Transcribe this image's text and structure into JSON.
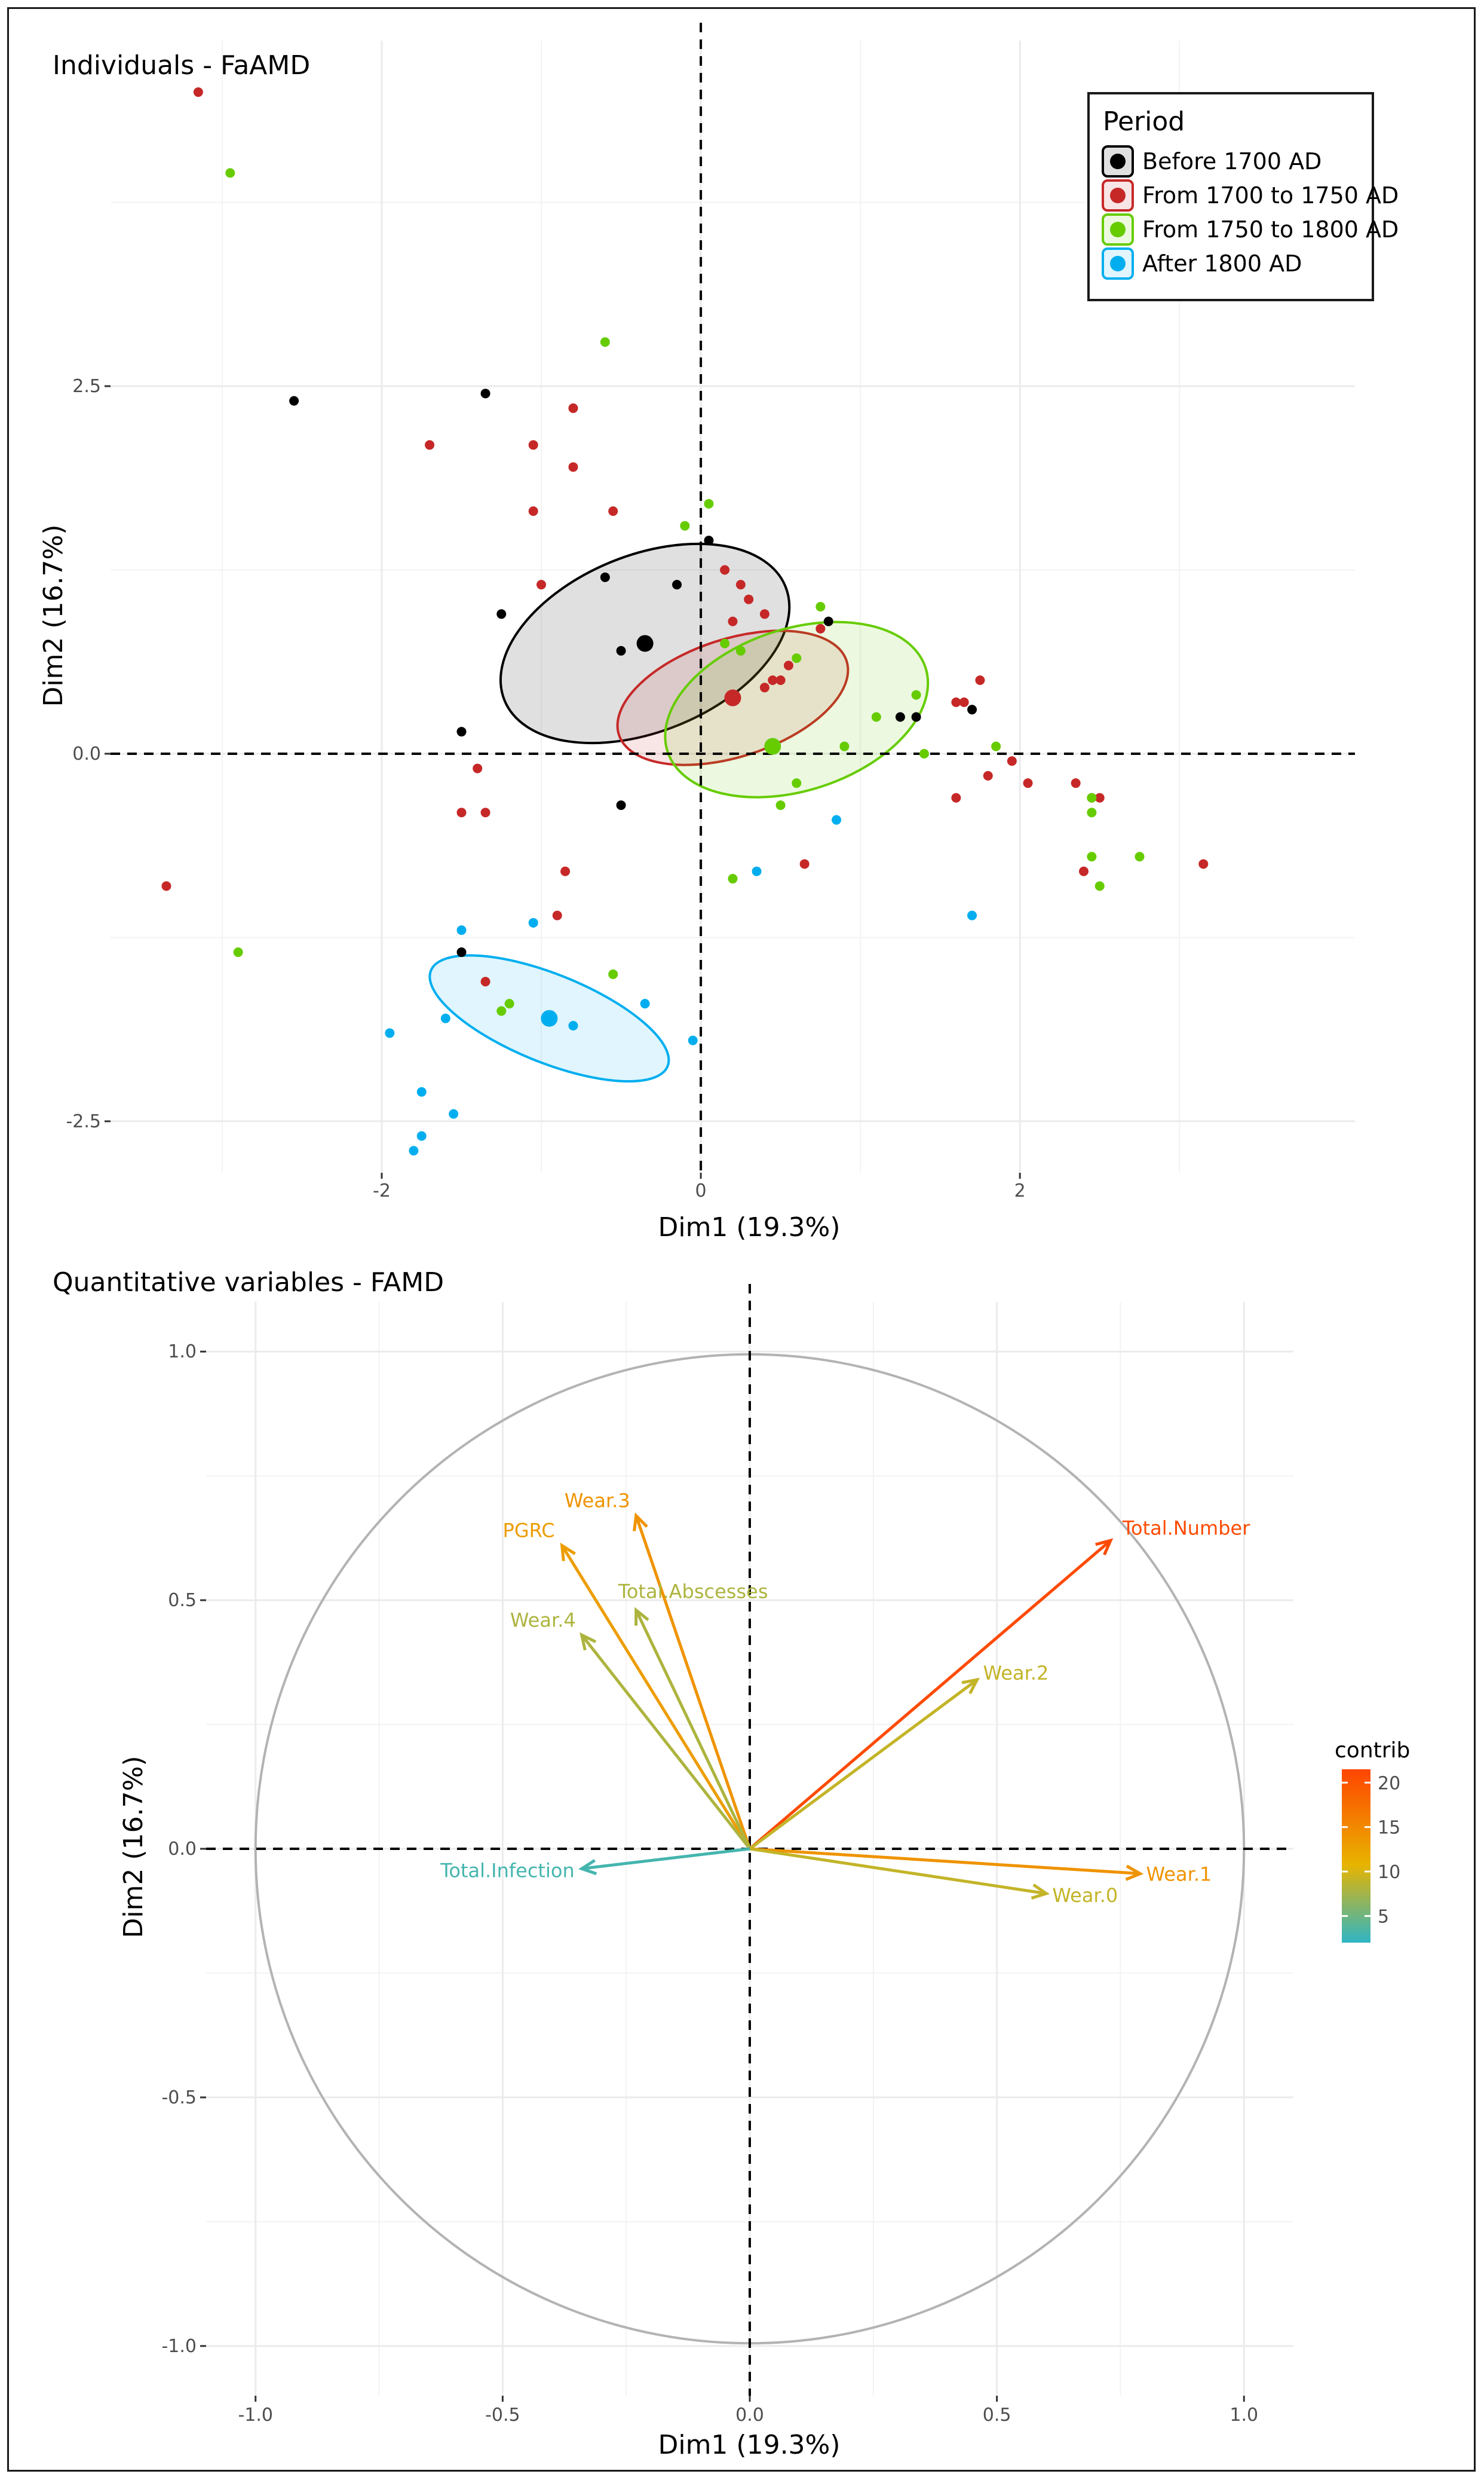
{
  "colors": {
    "period": {
      "Before 1700 AD": "#000000",
      "From 1700 to 1750 AD": "#C62828",
      "From 1750 to 1800 AD": "#66CC00",
      "After 1800 AD": "#00AEEF"
    },
    "contrib_low": "#2FB5C4",
    "contrib_mid": "#E8B400",
    "contrib_high": "#FF4500",
    "grid": "#EBEBEB",
    "axis_text": "#4D4D4D",
    "circle": "#B3B3B3"
  },
  "chart_data": [
    {
      "type": "scatter",
      "title": "Individuals - FaAMD",
      "xlabel": "Dim1 (19.3%)",
      "ylabel": "Dim2 (16.7%)",
      "xlim": [
        -3.7,
        4.1
      ],
      "ylim": [
        -2.85,
        4.85
      ],
      "x_ticks": [
        -2,
        0,
        2
      ],
      "x_tick_labels": [
        "-2",
        "0",
        "2"
      ],
      "y_ticks": [
        -2.5,
        0,
        2.5
      ],
      "y_tick_labels": [
        "-2.5",
        "0.0",
        "2.5"
      ],
      "grid": true,
      "legend": {
        "title": "Period",
        "position": "top-right",
        "entries": [
          "Before 1700 AD",
          "From 1700 to 1750 AD",
          "From 1750 to 1800 AD",
          "After 1800 AD"
        ]
      },
      "series": [
        {
          "name": "Before 1700 AD",
          "points": [
            [
              -2.55,
              2.4
            ],
            [
              -1.35,
              2.45
            ],
            [
              -1.25,
              0.95
            ],
            [
              -0.6,
              1.2
            ],
            [
              -0.5,
              0.7
            ],
            [
              -0.15,
              1.15
            ],
            [
              0.05,
              1.45
            ],
            [
              0.8,
              0.9
            ],
            [
              -1.5,
              0.15
            ],
            [
              -0.5,
              -0.35
            ],
            [
              -1.5,
              -1.35
            ],
            [
              1.25,
              0.25
            ],
            [
              1.35,
              0.25
            ],
            [
              1.7,
              0.3
            ]
          ],
          "centroid": [
            -0.35,
            0.75
          ],
          "ellipse": {
            "cx": -0.35,
            "cy": 0.75,
            "rx": 0.95,
            "ry": 0.6,
            "angle_deg": -22
          }
        },
        {
          "name": "From 1700 to 1750 AD",
          "points": [
            [
              -3.15,
              4.5
            ],
            [
              -1.7,
              2.1
            ],
            [
              -1.05,
              2.1
            ],
            [
              -0.8,
              2.35
            ],
            [
              -0.8,
              1.95
            ],
            [
              -1.05,
              1.65
            ],
            [
              -0.55,
              1.65
            ],
            [
              -1.0,
              1.15
            ],
            [
              0.15,
              1.25
            ],
            [
              0.25,
              1.15
            ],
            [
              0.3,
              1.05
            ],
            [
              0.4,
              0.95
            ],
            [
              0.2,
              0.9
            ],
            [
              0.5,
              0.5
            ],
            [
              0.55,
              0.6
            ],
            [
              0.45,
              0.5
            ],
            [
              0.75,
              0.85
            ],
            [
              0.4,
              0.45
            ],
            [
              -1.5,
              -0.4
            ],
            [
              -1.35,
              -0.4
            ],
            [
              -1.4,
              -0.1
            ],
            [
              -0.85,
              -0.8
            ],
            [
              -0.9,
              -1.1
            ],
            [
              -1.35,
              -1.55
            ],
            [
              0.65,
              -0.75
            ],
            [
              -3.35,
              -0.9
            ],
            [
              1.6,
              0.35
            ],
            [
              1.65,
              0.35
            ],
            [
              1.6,
              -0.3
            ],
            [
              1.75,
              0.5
            ],
            [
              1.8,
              -0.15
            ],
            [
              1.95,
              -0.05
            ],
            [
              2.05,
              -0.2
            ],
            [
              2.35,
              -0.2
            ],
            [
              2.45,
              -0.3
            ],
            [
              2.4,
              -0.8
            ],
            [
              2.5,
              -0.3
            ],
            [
              3.15,
              -0.75
            ]
          ],
          "centroid": [
            0.2,
            0.38
          ],
          "ellipse": {
            "cx": 0.2,
            "cy": 0.38,
            "rx": 0.75,
            "ry": 0.4,
            "angle_deg": -18
          }
        },
        {
          "name": "From 1750 to 1800 AD",
          "points": [
            [
              -2.95,
              3.95
            ],
            [
              -2.9,
              -1.35
            ],
            [
              -0.6,
              2.8
            ],
            [
              -0.1,
              1.55
            ],
            [
              0.05,
              1.7
            ],
            [
              0.15,
              0.75
            ],
            [
              0.25,
              0.7
            ],
            [
              0.6,
              0.65
            ],
            [
              0.75,
              1.0
            ],
            [
              0.5,
              -0.35
            ],
            [
              0.6,
              -0.2
            ],
            [
              0.9,
              0.05
            ],
            [
              1.1,
              0.25
            ],
            [
              1.35,
              0.4
            ],
            [
              1.4,
              0.0
            ],
            [
              1.85,
              0.05
            ],
            [
              2.45,
              -0.3
            ],
            [
              2.45,
              -0.4
            ],
            [
              2.45,
              -0.7
            ],
            [
              2.5,
              -0.9
            ],
            [
              2.75,
              -0.7
            ],
            [
              0.2,
              -0.85
            ],
            [
              -0.55,
              -1.5
            ],
            [
              -1.2,
              -1.7
            ],
            [
              -1.25,
              -1.75
            ]
          ],
          "centroid": [
            0.45,
            0.05
          ],
          "ellipse": {
            "cx": 0.6,
            "cy": 0.3,
            "rx": 0.85,
            "ry": 0.55,
            "angle_deg": -18
          }
        },
        {
          "name": "After 1800 AD",
          "points": [
            [
              -1.5,
              -1.2
            ],
            [
              -1.05,
              -1.15
            ],
            [
              -0.35,
              -1.7
            ],
            [
              -0.8,
              -1.85
            ],
            [
              -1.6,
              -1.8
            ],
            [
              -1.95,
              -1.9
            ],
            [
              -1.75,
              -2.3
            ],
            [
              -1.55,
              -2.45
            ],
            [
              -1.75,
              -2.6
            ],
            [
              -1.8,
              -2.7
            ],
            [
              -0.05,
              -1.95
            ],
            [
              0.35,
              -0.8
            ],
            [
              0.85,
              -0.45
            ],
            [
              1.7,
              -1.1
            ]
          ],
          "centroid": [
            -0.95,
            -1.8
          ],
          "ellipse": {
            "cx": -0.95,
            "cy": -1.8,
            "rx": 0.8,
            "ry": 0.3,
            "angle_deg": 22
          }
        }
      ]
    },
    {
      "type": "scatter",
      "title": "Quantitative variables - FAMD",
      "xlabel": "Dim1 (19.3%)",
      "ylabel": "Dim2 (16.7%)",
      "xlim": [
        -1.1,
        1.1
      ],
      "ylim": [
        -1.1,
        1.1
      ],
      "x_ticks": [
        -1.0,
        -0.5,
        0.0,
        0.5,
        1.0
      ],
      "x_tick_labels": [
        "-1.0",
        "-0.5",
        "0.0",
        "0.5",
        "1.0"
      ],
      "y_ticks": [
        -1.0,
        -0.5,
        0.0,
        0.5,
        1.0
      ],
      "y_tick_labels": [
        "-1.0",
        "-0.5",
        "0.0",
        "0.5",
        "1.0"
      ],
      "grid": true,
      "legend": {
        "title": "contrib",
        "position": "right",
        "range": [
          2,
          21.5
        ],
        "ticks": [
          5,
          10,
          15,
          20
        ],
        "tick_labels": [
          "5",
          "10",
          "15",
          "20"
        ]
      },
      "variables": [
        {
          "name": "Total.Number",
          "x": 0.73,
          "y": 0.62,
          "contrib": 21
        },
        {
          "name": "Wear.2",
          "x": 0.46,
          "y": 0.34,
          "contrib": 9
        },
        {
          "name": "Wear.1",
          "x": 0.79,
          "y": -0.05,
          "contrib": 14
        },
        {
          "name": "Wear.0",
          "x": 0.6,
          "y": -0.09,
          "contrib": 9
        },
        {
          "name": "Wear.3",
          "x": -0.23,
          "y": 0.67,
          "contrib": 14
        },
        {
          "name": "PGRC",
          "x": -0.38,
          "y": 0.61,
          "contrib": 13
        },
        {
          "name": "Total.Abscesses",
          "x": -0.23,
          "y": 0.48,
          "contrib": 8
        },
        {
          "name": "Wear.4",
          "x": -0.34,
          "y": 0.43,
          "contrib": 8
        },
        {
          "name": "Total.Infection",
          "x": -0.34,
          "y": -0.04,
          "contrib": 3
        }
      ]
    }
  ]
}
